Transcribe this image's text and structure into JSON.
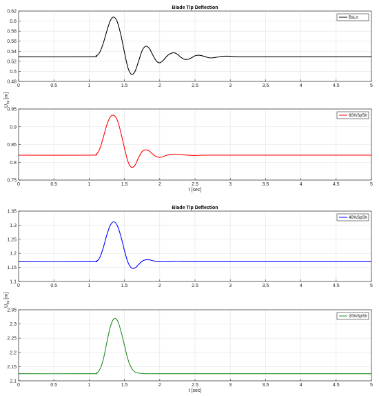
{
  "figure": {
    "titles": [
      "Blade Tip Deflection",
      "Blade Tip Deflection"
    ],
    "ylabel": "U",
    "ylabel_sub": "tip",
    "ylabel_unit": "[m]",
    "xlabel": "t [sec]"
  },
  "chart_data": [
    {
      "type": "line",
      "title": "Blade Tip Deflection",
      "xlabel": "",
      "ylabel": "",
      "xlim": [
        0,
        5
      ],
      "ylim": [
        0.48,
        0.62
      ],
      "xticks": [
        "0",
        "0.5",
        "1",
        "1.5",
        "2",
        "2.5",
        "3",
        "3.5",
        "4",
        "4.5",
        "5"
      ],
      "yticks": [
        "0.48",
        "0.5",
        "0.52",
        "0.54",
        "0.56",
        "0.58",
        "0.6",
        "0.62"
      ],
      "ytick_values": [
        0.48,
        0.5,
        0.52,
        0.54,
        0.56,
        0.58,
        0.6,
        0.62
      ],
      "grid": true,
      "legend_position": "top-right",
      "series": [
        {
          "name": "BsLn",
          "color": "#000000",
          "x": [
            0,
            1.0,
            1.1,
            1.15,
            1.2,
            1.25,
            1.3,
            1.35,
            1.4,
            1.45,
            1.5,
            1.55,
            1.6,
            1.65,
            1.7,
            1.75,
            1.8,
            1.85,
            1.9,
            1.95,
            2.0,
            2.05,
            2.1,
            2.15,
            2.2,
            2.25,
            2.3,
            2.35,
            2.4,
            2.45,
            2.5,
            2.55,
            2.6,
            2.65,
            2.7,
            2.75,
            2.8,
            2.9,
            3.0,
            3.1,
            3.2,
            3.3,
            3.4,
            3.6,
            3.8,
            4.0,
            4.5,
            5.0
          ],
          "y": [
            0.529,
            0.529,
            0.531,
            0.538,
            0.556,
            0.58,
            0.601,
            0.608,
            0.598,
            0.572,
            0.538,
            0.507,
            0.494,
            0.5,
            0.52,
            0.541,
            0.55,
            0.546,
            0.533,
            0.521,
            0.517,
            0.522,
            0.53,
            0.535,
            0.537,
            0.534,
            0.528,
            0.524,
            0.524,
            0.527,
            0.531,
            0.532,
            0.531,
            0.529,
            0.527,
            0.527,
            0.528,
            0.53,
            0.53,
            0.529,
            0.529,
            0.529,
            0.529,
            0.529,
            0.529,
            0.529,
            0.529,
            0.529
          ]
        }
      ]
    },
    {
      "type": "line",
      "title": "",
      "xlabel": "t [sec]",
      "ylabel": "",
      "xlim": [
        0,
        5
      ],
      "ylim": [
        0.75,
        0.95
      ],
      "xticks": [
        "0",
        "0.5",
        "1",
        "1.5",
        "2",
        "2.5",
        "3",
        "3.5",
        "4",
        "4.5",
        "5"
      ],
      "yticks": [
        "0.75",
        "0.8",
        "0.85",
        "0.9",
        "0.95"
      ],
      "ytick_values": [
        0.75,
        0.8,
        0.85,
        0.9,
        0.95
      ],
      "grid": true,
      "legend_position": "top-right",
      "series": [
        {
          "name": "60%SpSh",
          "color": "#ff0000",
          "x": [
            0,
            1.0,
            1.1,
            1.15,
            1.2,
            1.25,
            1.3,
            1.35,
            1.4,
            1.45,
            1.5,
            1.55,
            1.6,
            1.65,
            1.7,
            1.75,
            1.8,
            1.85,
            1.9,
            1.95,
            2.0,
            2.05,
            2.1,
            2.2,
            2.3,
            2.4,
            2.5,
            2.6,
            2.8,
            3.0,
            4.0,
            5.0
          ],
          "y": [
            0.82,
            0.82,
            0.823,
            0.838,
            0.87,
            0.905,
            0.928,
            0.932,
            0.918,
            0.883,
            0.84,
            0.802,
            0.786,
            0.792,
            0.813,
            0.83,
            0.835,
            0.832,
            0.823,
            0.816,
            0.814,
            0.816,
            0.82,
            0.823,
            0.822,
            0.82,
            0.819,
            0.82,
            0.82,
            0.82,
            0.82,
            0.82
          ]
        }
      ]
    },
    {
      "type": "line",
      "title": "Blade Tip Deflection",
      "xlabel": "",
      "ylabel": "",
      "xlim": [
        0,
        5
      ],
      "ylim": [
        1.1,
        1.35
      ],
      "xticks": [
        "0",
        "0.5",
        "1",
        "1.5",
        "2",
        "2.5",
        "3",
        "3.5",
        "4",
        "4.5",
        "5"
      ],
      "yticks": [
        "1.1",
        "1.15",
        "1.2",
        "1.25",
        "1.3",
        "1.35"
      ],
      "ytick_values": [
        1.1,
        1.15,
        1.2,
        1.25,
        1.3,
        1.35
      ],
      "grid": true,
      "legend_position": "top-right",
      "series": [
        {
          "name": "40%SpSh",
          "color": "#0000ff",
          "x": [
            0,
            1.0,
            1.1,
            1.15,
            1.2,
            1.25,
            1.3,
            1.35,
            1.4,
            1.45,
            1.5,
            1.55,
            1.6,
            1.65,
            1.7,
            1.75,
            1.8,
            1.85,
            1.9,
            1.95,
            2.0,
            2.1,
            2.2,
            2.3,
            2.5,
            3.0,
            4.0,
            5.0
          ],
          "y": [
            1.17,
            1.17,
            1.172,
            1.185,
            1.22,
            1.265,
            1.3,
            1.312,
            1.298,
            1.26,
            1.21,
            1.168,
            1.148,
            1.148,
            1.16,
            1.172,
            1.177,
            1.177,
            1.174,
            1.171,
            1.17,
            1.17,
            1.171,
            1.171,
            1.17,
            1.17,
            1.17,
            1.17
          ]
        }
      ]
    },
    {
      "type": "line",
      "title": "",
      "xlabel": "t [sec]",
      "ylabel": "",
      "xlim": [
        0,
        5
      ],
      "ylim": [
        2.1,
        2.35
      ],
      "xticks": [
        "0",
        "0.5",
        "1",
        "1.5",
        "2",
        "2.5",
        "3",
        "3.5",
        "4",
        "4.5",
        "5"
      ],
      "yticks": [
        "2.1",
        "2.15",
        "2.2",
        "2.25",
        "2.3",
        "2.35"
      ],
      "ytick_values": [
        2.1,
        2.15,
        2.2,
        2.25,
        2.3,
        2.35
      ],
      "grid": true,
      "legend_position": "top-right",
      "series": [
        {
          "name": "20%SpSh",
          "color": "#228b22",
          "x": [
            0,
            1.0,
            1.1,
            1.15,
            1.2,
            1.25,
            1.3,
            1.35,
            1.4,
            1.45,
            1.5,
            1.55,
            1.6,
            1.65,
            1.7,
            1.8,
            2.0,
            3.0,
            4.0,
            5.0
          ],
          "y": [
            2.125,
            2.125,
            2.127,
            2.14,
            2.175,
            2.235,
            2.29,
            2.318,
            2.312,
            2.275,
            2.225,
            2.175,
            2.145,
            2.131,
            2.127,
            2.125,
            2.125,
            2.125,
            2.125,
            2.125
          ]
        }
      ]
    }
  ]
}
